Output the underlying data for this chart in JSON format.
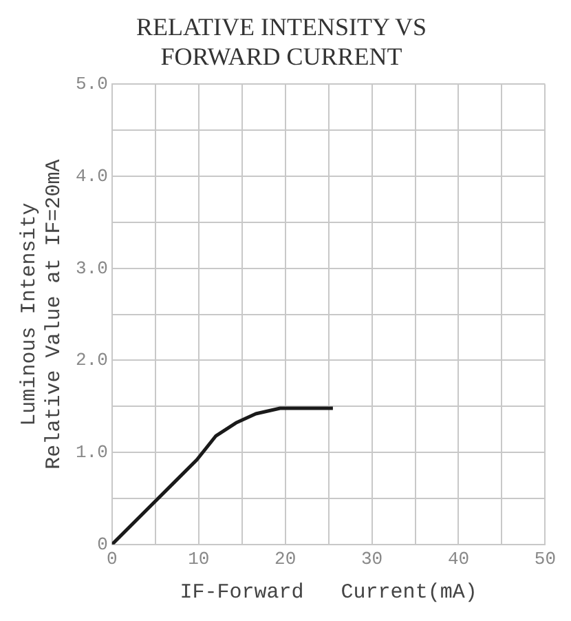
{
  "chart_data": {
    "type": "line",
    "title": "RELATIVE INTENSITY VS\nFORWARD CURRENT",
    "xlabel": "IF-Forward   Current(mA)",
    "ylabel": "Luminous Intensity\nRelative Value at IF=20mA",
    "x": [
      0,
      5,
      9.8,
      12,
      14.3,
      16.6,
      19.4,
      24.7,
      25.5
    ],
    "series": [
      {
        "color": "#1a1a1a",
        "values": [
          0,
          0.47,
          0.92,
          1.18,
          1.32,
          1.42,
          1.48,
          1.48,
          1.48
        ]
      }
    ],
    "xlim": [
      0,
      50
    ],
    "ylim": [
      0,
      5
    ],
    "xticks": [
      0,
      {
        "value": 5,
        "label": null
      },
      10,
      {
        "value": 15,
        "label": null
      },
      20,
      {
        "value": 25,
        "label": null
      },
      30,
      {
        "value": 35,
        "label": null
      },
      40,
      {
        "value": 45,
        "label": null
      },
      50
    ],
    "yticks": [
      0,
      {
        "value": 0.5,
        "label": null
      },
      {
        "value": 1,
        "label": "1.0"
      },
      {
        "value": 1.5,
        "label": null
      },
      {
        "value": 2,
        "label": "2.0"
      },
      {
        "value": 2.5,
        "label": null
      },
      {
        "value": 3,
        "label": "3.0"
      },
      {
        "value": 3.5,
        "label": null
      },
      {
        "value": 4,
        "label": "4.0"
      },
      {
        "value": 4.5,
        "label": null
      },
      {
        "value": 5,
        "label": "5.0"
      }
    ],
    "grid": true,
    "legend": false,
    "marker": "none",
    "line_style": "solid"
  }
}
